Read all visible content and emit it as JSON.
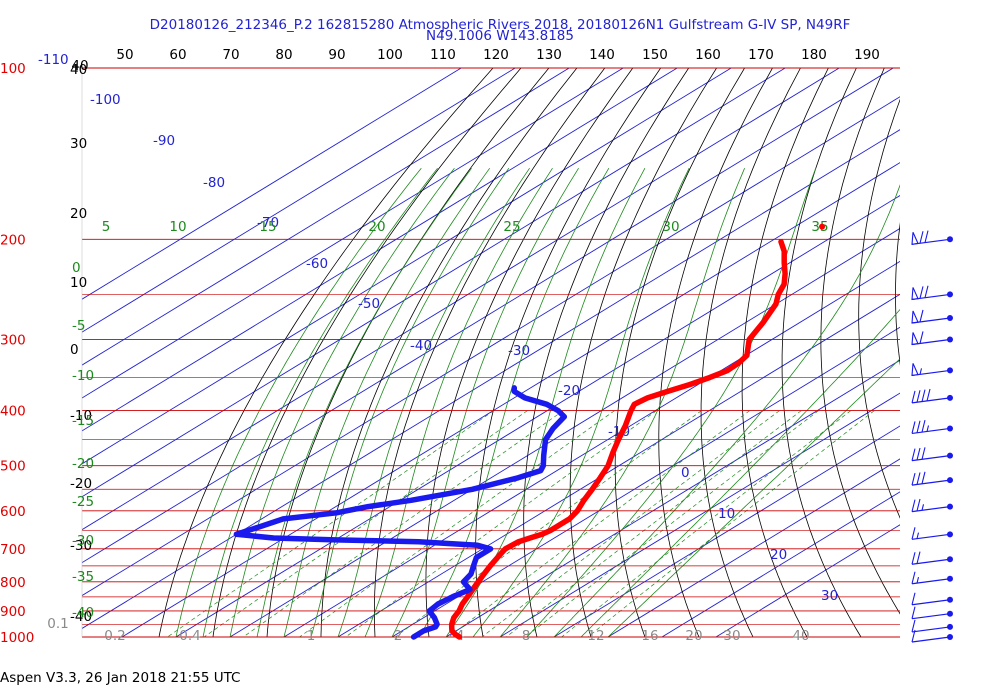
{
  "header": {
    "title_line1": "D20180126_212346_P.2 162815280 Atmospheric Rivers 2018, 20180126N1 Gulfstream G-IV SP, N49RF",
    "title_line2": "N49.1006 W143.8185"
  },
  "footer": {
    "software": "Aspen V3.3, 26 Jan 2018  21:55 UTC"
  },
  "colors": {
    "temperature": "#ff0000",
    "dewpoint": "#1a1aee",
    "isobar": "#cc0000",
    "isotherm": "#2323d2",
    "dry_adiabat": "#000000",
    "mixing_ratio": "#1d8a1d",
    "moist_adiabat": "#1d8a1d",
    "wind": "#1a1aee"
  },
  "chart_data": {
    "type": "line",
    "chart_kind": "skew-T log-p diagram",
    "title": "D20180126_212346_P.2 162815280 Atmospheric Rivers 2018, 20180126N1 Gulfstream G-IV SP, N49RF",
    "subtitle": "N49.1006 W143.8185",
    "y_scale": "log",
    "pressure_ticks": [
      "100",
      "200",
      "300",
      "400",
      "500",
      "600",
      "700",
      "800",
      "900",
      "1000"
    ],
    "temperature_top_ticks": [
      "40",
      "50",
      "60",
      "70",
      "80",
      "90",
      "100",
      "110",
      "120",
      "130",
      "140",
      "150",
      "160",
      "170",
      "180",
      "190"
    ],
    "left_temperature_ticks": [
      "40",
      "30",
      "20",
      "10",
      "0",
      "-10",
      "-20",
      "-30",
      "-40"
    ],
    "top_left_label": "-110",
    "isotherm_labels": [
      "-100",
      "-90",
      "-80",
      "-70",
      "-60",
      "-50",
      "-40",
      "-30",
      "-20",
      "-10",
      "0",
      "10",
      "20",
      "30"
    ],
    "moist_adiabat_top_labels": [
      "5",
      "10",
      "15",
      "20",
      "25",
      "30",
      "35"
    ],
    "moist_adiabat_left_labels": [
      "0",
      "-5",
      "-10",
      "-15",
      "-20",
      "-25",
      "-30",
      "-35",
      "-40"
    ],
    "mixing_ratio_labels": [
      "0.1",
      "0.2",
      "0.4",
      "1",
      "2",
      "4",
      "8",
      "12",
      "16",
      "20",
      "30",
      "40"
    ],
    "series": [
      {
        "name": "Temperature",
        "units": "C",
        "points": [
          [
            1000,
            12.5
          ],
          [
            990,
            11.0
          ],
          [
            975,
            9.2
          ],
          [
            960,
            8.0
          ],
          [
            950,
            7.2
          ],
          [
            925,
            5.6
          ],
          [
            900,
            4.5
          ],
          [
            875,
            3.0
          ],
          [
            850,
            1.8
          ],
          [
            825,
            0.5
          ],
          [
            800,
            -0.8
          ],
          [
            775,
            -2.1
          ],
          [
            750,
            -3.4
          ],
          [
            725,
            -4.6
          ],
          [
            700,
            -5.8
          ],
          [
            680,
            -5.5
          ],
          [
            670,
            -4.5
          ],
          [
            660,
            -3.4
          ],
          [
            650,
            -3.0
          ],
          [
            620,
            -3.0
          ],
          [
            600,
            -4.0
          ],
          [
            575,
            -6.0
          ],
          [
            550,
            -7.8
          ],
          [
            525,
            -9.8
          ],
          [
            500,
            -12.0
          ],
          [
            475,
            -15.0
          ],
          [
            450,
            -18.0
          ],
          [
            425,
            -21.0
          ],
          [
            400,
            -24.5
          ],
          [
            390,
            -25.8
          ],
          [
            380,
            -25.3
          ],
          [
            370,
            -23.5
          ],
          [
            360,
            -21.5
          ],
          [
            350,
            -20.0
          ],
          [
            340,
            -18.8
          ],
          [
            330,
            -19.0
          ],
          [
            320,
            -19.8
          ],
          [
            300,
            -24.2
          ],
          [
            280,
            -26.8
          ],
          [
            260,
            -30.0
          ],
          [
            250,
            -32.5
          ],
          [
            240,
            -34.5
          ],
          [
            230,
            -37.5
          ],
          [
            220,
            -41.0
          ],
          [
            210,
            -44.5
          ],
          [
            202,
            -48.0
          ]
        ]
      },
      {
        "name": "Dewpoint",
        "units": "C",
        "points": [
          [
            1000,
            4.0
          ],
          [
            975,
            4.0
          ],
          [
            960,
            5.0
          ],
          [
            950,
            4.5
          ],
          [
            925,
            2.0
          ],
          [
            900,
            -1.0
          ],
          [
            875,
            -1.5
          ],
          [
            850,
            -1.0
          ],
          [
            825,
            0.0
          ],
          [
            800,
            -3.5
          ],
          [
            775,
            -4.5
          ],
          [
            750,
            -6.5
          ],
          [
            725,
            -8.5
          ],
          [
            700,
            -8.5
          ],
          [
            690,
            -12.0
          ],
          [
            680,
            -24.0
          ],
          [
            675,
            -40.0
          ],
          [
            670,
            -52.0
          ],
          [
            660,
            -60.0
          ],
          [
            640,
            -58.0
          ],
          [
            620,
            -56.0
          ],
          [
            605,
            -48.0
          ],
          [
            590,
            -44.0
          ],
          [
            575,
            -38.0
          ],
          [
            550,
            -30.0
          ],
          [
            525,
            -25.0
          ],
          [
            510,
            -23.0
          ],
          [
            500,
            -24.0
          ],
          [
            480,
            -27.0
          ],
          [
            450,
            -31.5
          ],
          [
            430,
            -33.5
          ],
          [
            410,
            -35.0
          ],
          [
            400,
            -38.0
          ],
          [
            390,
            -42.0
          ],
          [
            380,
            -48.0
          ],
          [
            370,
            -52.0
          ],
          [
            365,
            -53.0
          ]
        ]
      }
    ],
    "wind_barbs": [
      {
        "pressure": 200,
        "speed_kt": 70
      },
      {
        "pressure": 250,
        "speed_kt": 70
      },
      {
        "pressure": 275,
        "speed_kt": 60
      },
      {
        "pressure": 300,
        "speed_kt": 60
      },
      {
        "pressure": 340,
        "speed_kt": 55
      },
      {
        "pressure": 380,
        "speed_kt": 40
      },
      {
        "pressure": 430,
        "speed_kt": 35
      },
      {
        "pressure": 480,
        "speed_kt": 30
      },
      {
        "pressure": 530,
        "speed_kt": 30
      },
      {
        "pressure": 590,
        "speed_kt": 25
      },
      {
        "pressure": 660,
        "speed_kt": 15
      },
      {
        "pressure": 730,
        "speed_kt": 20
      },
      {
        "pressure": 790,
        "speed_kt": 15
      },
      {
        "pressure": 860,
        "speed_kt": 10
      },
      {
        "pressure": 910,
        "speed_kt": 10
      },
      {
        "pressure": 960,
        "speed_kt": 10
      },
      {
        "pressure": 1000,
        "speed_kt": 10
      }
    ]
  }
}
